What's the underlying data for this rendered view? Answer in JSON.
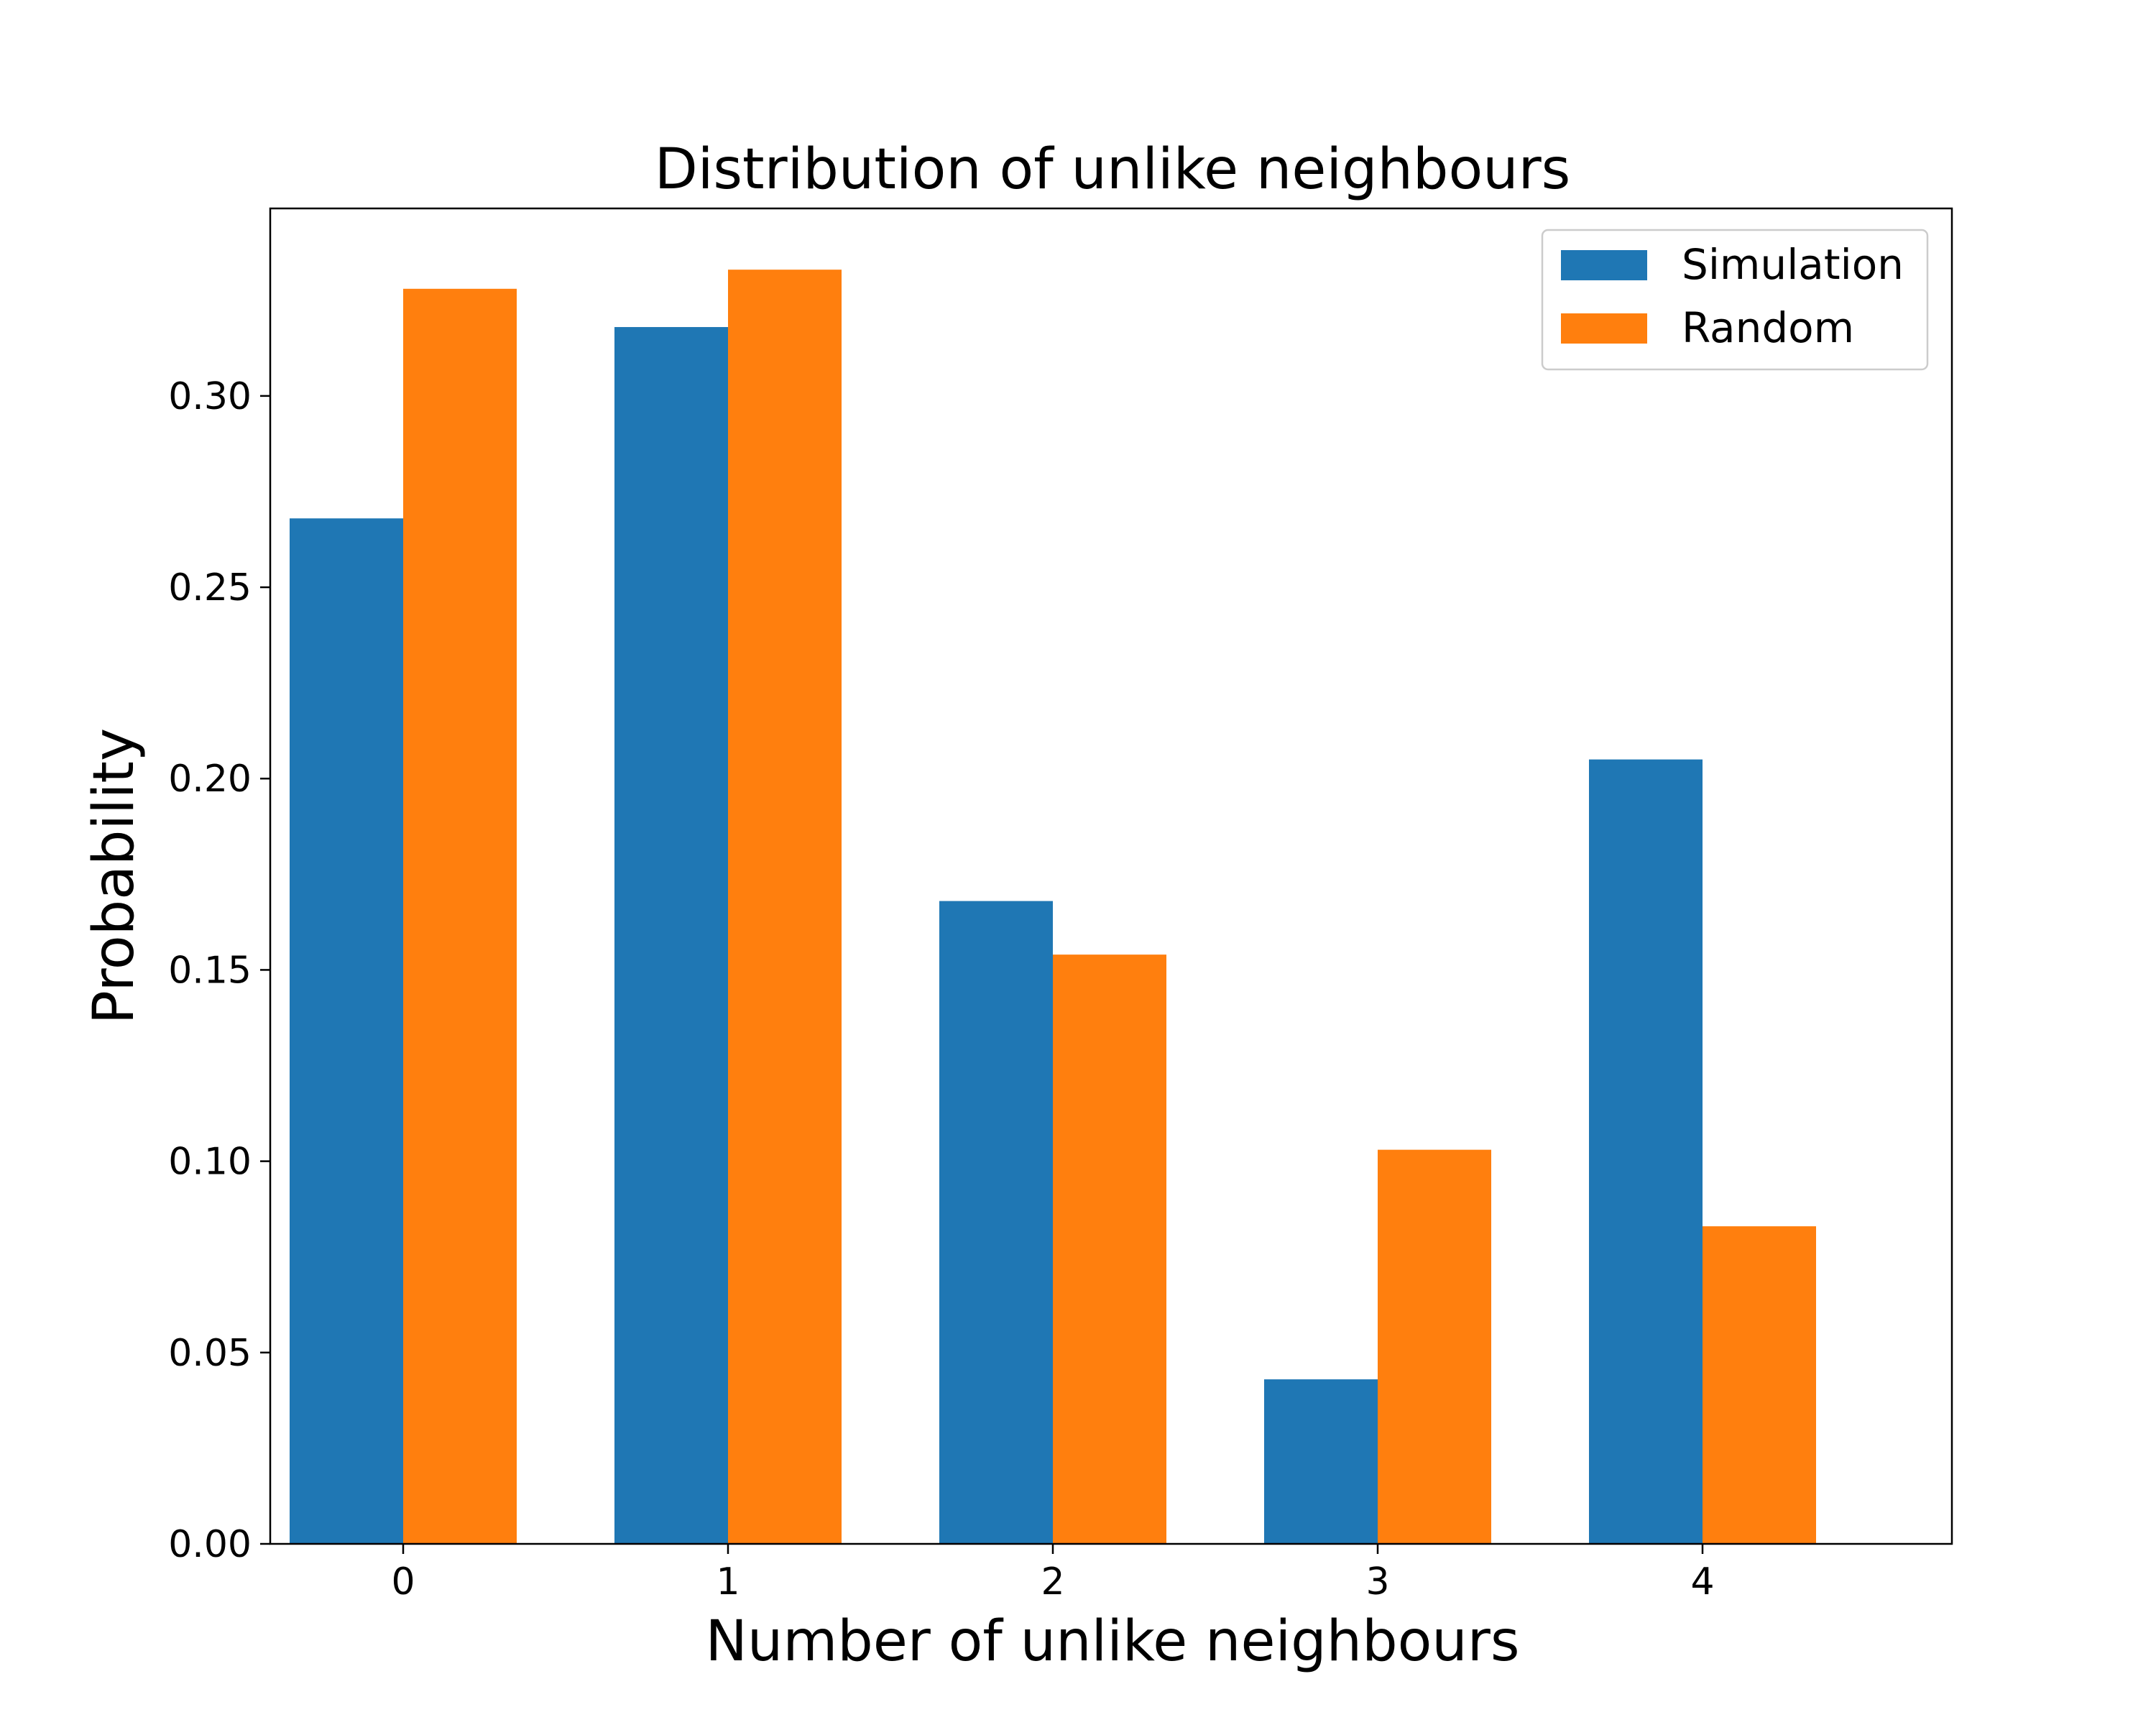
{
  "chart_data": {
    "type": "bar",
    "title": "Distribution of unlike neighbours",
    "xlabel": "Number of unlike neighbours",
    "ylabel": "Probability",
    "categories": [
      "0",
      "1",
      "2",
      "3",
      "4"
    ],
    "series": [
      {
        "name": "Simulation",
        "color": "#1f77b4",
        "values": [
          0.268,
          0.318,
          0.168,
          0.043,
          0.205
        ]
      },
      {
        "name": "Random",
        "color": "#ff7f0e",
        "values": [
          0.328,
          0.333,
          0.154,
          0.103,
          0.083
        ]
      }
    ],
    "ylim": [
      0,
      0.349
    ],
    "yticks": [
      "0.00",
      "0.05",
      "0.10",
      "0.15",
      "0.20",
      "0.25",
      "0.30"
    ],
    "grid": false,
    "legend_position": "top-right"
  }
}
